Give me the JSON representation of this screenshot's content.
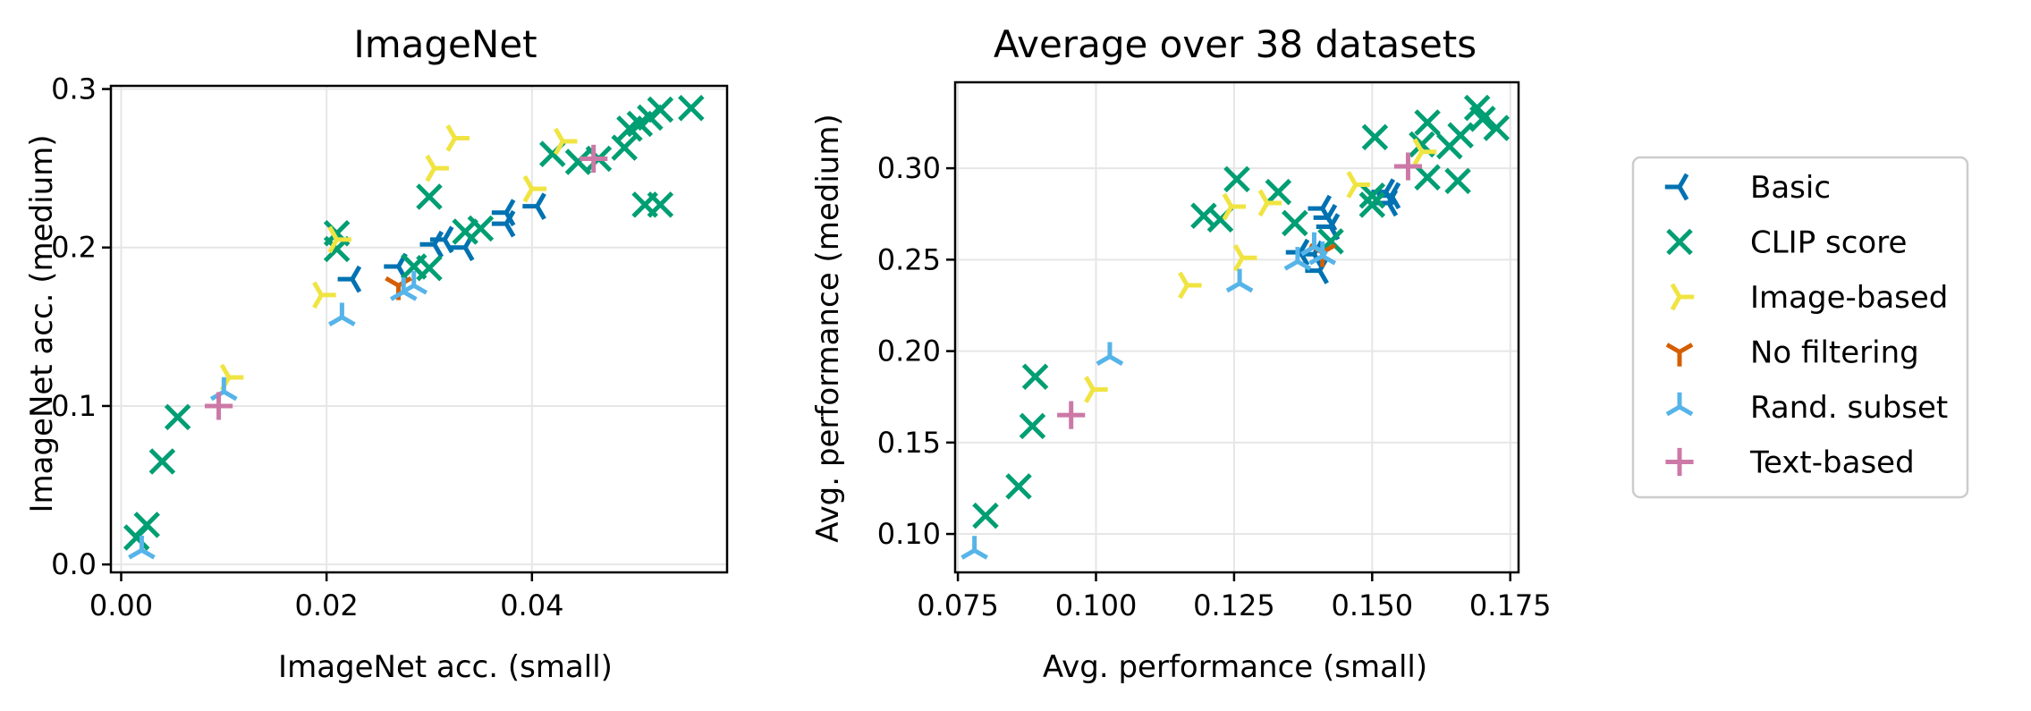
{
  "colors": {
    "Basic": "#0072b2",
    "CLIP score": "#009e73",
    "Image-based": "#f0e442",
    "No filtering": "#d55e00",
    "Rand. subset": "#56b4e9",
    "Text-based": "#cc79a7"
  },
  "legend": {
    "placement": "right",
    "entries": [
      {
        "label": "Basic",
        "marker": "tri_left"
      },
      {
        "label": "CLIP score",
        "marker": "x"
      },
      {
        "label": "Image-based",
        "marker": "tri_right"
      },
      {
        "label": "No filtering",
        "marker": "tri_down"
      },
      {
        "label": "Rand. subset",
        "marker": "tri_up"
      },
      {
        "label": "Text-based",
        "marker": "plus"
      }
    ]
  },
  "chart_data": [
    {
      "type": "scatter",
      "title": "ImageNet",
      "xlabel": "ImageNet acc. (small)",
      "ylabel": "ImageNet acc. (medium)",
      "xlim": [
        -0.001,
        0.059
      ],
      "ylim": [
        -0.005,
        0.302
      ],
      "xticks": [
        0.0,
        0.02,
        0.04
      ],
      "xtick_labels": [
        "0.00",
        "0.02",
        "0.04"
      ],
      "yticks": [
        0.0,
        0.1,
        0.2,
        0.3
      ],
      "ytick_labels": [
        "0.0",
        "0.1",
        "0.2",
        "0.3"
      ],
      "grid": true,
      "series": [
        {
          "name": "Basic",
          "points": [
            [
              0.0225,
              0.18
            ],
            [
              0.027,
              0.188
            ],
            [
              0.0305,
              0.202
            ],
            [
              0.0315,
              0.205
            ],
            [
              0.0335,
              0.2
            ],
            [
              0.0375,
              0.215
            ],
            [
              0.0375,
              0.222
            ],
            [
              0.0405,
              0.226
            ]
          ]
        },
        {
          "name": "CLIP score",
          "points": [
            [
              0.0015,
              0.017
            ],
            [
              0.0025,
              0.025
            ],
            [
              0.004,
              0.065
            ],
            [
              0.0055,
              0.093
            ],
            [
              0.021,
              0.209
            ],
            [
              0.021,
              0.199
            ],
            [
              0.0285,
              0.188
            ],
            [
              0.03,
              0.187
            ],
            [
              0.03,
              0.232
            ],
            [
              0.0335,
              0.21
            ],
            [
              0.035,
              0.212
            ],
            [
              0.042,
              0.259
            ],
            [
              0.0445,
              0.254
            ],
            [
              0.0465,
              0.256
            ],
            [
              0.049,
              0.263
            ],
            [
              0.0495,
              0.275
            ],
            [
              0.0505,
              0.278
            ],
            [
              0.0515,
              0.282
            ],
            [
              0.0525,
              0.287
            ],
            [
              0.0555,
              0.288
            ],
            [
              0.051,
              0.227
            ],
            [
              0.0525,
              0.227
            ]
          ]
        },
        {
          "name": "Image-based",
          "points": [
            [
              0.0105,
              0.118
            ],
            [
              0.0195,
              0.17
            ],
            [
              0.021,
              0.205
            ],
            [
              0.0305,
              0.25
            ],
            [
              0.0325,
              0.269
            ],
            [
              0.04,
              0.237
            ],
            [
              0.043,
              0.267
            ]
          ]
        },
        {
          "name": "No filtering",
          "points": [
            [
              0.027,
              0.176
            ]
          ]
        },
        {
          "name": "Rand. subset",
          "points": [
            [
              0.002,
              0.009
            ],
            [
              0.01,
              0.109
            ],
            [
              0.0215,
              0.156
            ],
            [
              0.0275,
              0.172
            ],
            [
              0.0285,
              0.176
            ]
          ]
        },
        {
          "name": "Text-based",
          "points": [
            [
              0.0095,
              0.1
            ],
            [
              0.046,
              0.256
            ]
          ]
        }
      ]
    },
    {
      "type": "scatter",
      "title": "Average over 38 datasets",
      "xlabel": "Avg. performance (small)",
      "ylabel": "Avg. performance (medium)",
      "xlim": [
        0.0745,
        0.1765
      ],
      "ylim": [
        0.079,
        0.347
      ],
      "xticks": [
        0.075,
        0.1,
        0.125,
        0.15,
        0.175
      ],
      "xtick_labels": [
        "0.075",
        "0.100",
        "0.125",
        "0.150",
        "0.175"
      ],
      "yticks": [
        0.1,
        0.15,
        0.2,
        0.25,
        0.3
      ],
      "ytick_labels": [
        "0.10",
        "0.15",
        "0.20",
        "0.25",
        "0.30"
      ],
      "grid": true,
      "series": [
        {
          "name": "Basic",
          "points": [
            [
              0.137,
              0.254
            ],
            [
              0.1395,
              0.253
            ],
            [
              0.1405,
              0.244
            ],
            [
              0.141,
              0.278
            ],
            [
              0.142,
              0.273
            ],
            [
              0.1425,
              0.268
            ],
            [
              0.1525,
              0.287
            ],
            [
              0.153,
              0.281
            ],
            [
              0.1535,
              0.285
            ]
          ]
        },
        {
          "name": "CLIP score",
          "points": [
            [
              0.08,
              0.11
            ],
            [
              0.086,
              0.126
            ],
            [
              0.0885,
              0.159
            ],
            [
              0.089,
              0.186
            ],
            [
              0.1195,
              0.274
            ],
            [
              0.1225,
              0.272
            ],
            [
              0.1255,
              0.294
            ],
            [
              0.133,
              0.287
            ],
            [
              0.136,
              0.27
            ],
            [
              0.1425,
              0.26
            ],
            [
              0.15,
              0.28
            ],
            [
              0.15,
              0.285
            ],
            [
              0.1505,
              0.317
            ],
            [
              0.159,
              0.313
            ],
            [
              0.16,
              0.325
            ],
            [
              0.16,
              0.295
            ],
            [
              0.164,
              0.312
            ],
            [
              0.166,
              0.318
            ],
            [
              0.1655,
              0.293
            ],
            [
              0.169,
              0.333
            ],
            [
              0.17,
              0.327
            ],
            [
              0.1725,
              0.322
            ]
          ]
        },
        {
          "name": "Image-based",
          "points": [
            [
              0.0995,
              0.179
            ],
            [
              0.1165,
              0.236
            ],
            [
              0.1245,
              0.279
            ],
            [
              0.1265,
              0.251
            ],
            [
              0.131,
              0.281
            ],
            [
              0.147,
              0.291
            ],
            [
              0.159,
              0.309
            ]
          ]
        },
        {
          "name": "No filtering",
          "points": [
            [
              0.141,
              0.254
            ]
          ]
        },
        {
          "name": "Rand. subset",
          "points": [
            [
              0.078,
              0.091
            ],
            [
              0.1025,
              0.197
            ],
            [
              0.126,
              0.237
            ],
            [
              0.1365,
              0.249
            ],
            [
              0.1395,
              0.257
            ],
            [
              0.141,
              0.252
            ]
          ]
        },
        {
          "name": "Text-based",
          "points": [
            [
              0.0955,
              0.165
            ],
            [
              0.1565,
              0.301
            ]
          ]
        }
      ]
    }
  ]
}
